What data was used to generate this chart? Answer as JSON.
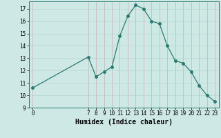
{
  "x": [
    0,
    7,
    8,
    9,
    10,
    11,
    12,
    13,
    14,
    15,
    16,
    17,
    18,
    19,
    20,
    21,
    22,
    23
  ],
  "y": [
    10.6,
    13.1,
    11.5,
    11.9,
    12.3,
    14.8,
    16.4,
    17.3,
    17.0,
    16.0,
    15.8,
    14.0,
    12.8,
    12.6,
    11.9,
    10.8,
    10.0,
    9.5
  ],
  "line_color": "#2a7a6f",
  "marker_color": "#2a7a6f",
  "bg_color": "#cde8e5",
  "grid_color_v": "#c8b0b0",
  "grid_color_h": "#b8d4d0",
  "xlabel": "Humidex (Indice chaleur)",
  "xlabel_fontsize": 7,
  "xlim": [
    -0.5,
    23.5
  ],
  "ylim": [
    9,
    17.6
  ],
  "yticks": [
    9,
    10,
    11,
    12,
    13,
    14,
    15,
    16,
    17
  ],
  "xticks": [
    0,
    7,
    8,
    9,
    10,
    11,
    12,
    13,
    14,
    15,
    16,
    17,
    18,
    19,
    20,
    21,
    22,
    23
  ],
  "tick_fontsize": 5.5,
  "marker_size": 2.5,
  "linewidth": 0.9
}
